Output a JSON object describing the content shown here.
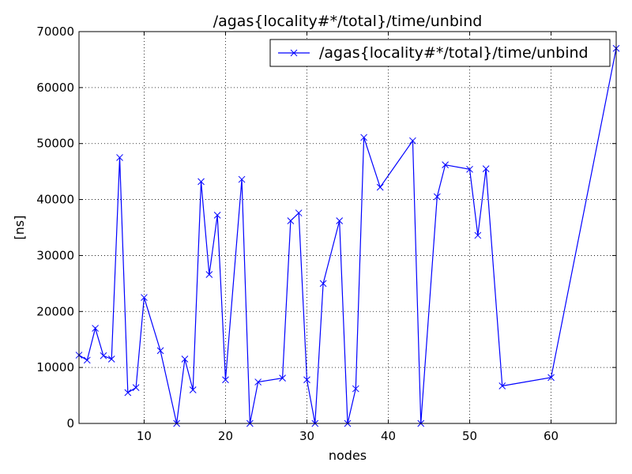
{
  "chart_data": {
    "type": "line",
    "title": "/agas{locality#*/total}/time/unbind",
    "xlabel": "nodes",
    "ylabel": "[ns]",
    "xlim": [
      2,
      68
    ],
    "ylim": [
      0,
      70000
    ],
    "xticks": [
      "10",
      "20",
      "30",
      "40",
      "50",
      "60"
    ],
    "yticks": [
      "0",
      "10000",
      "20000",
      "30000",
      "40000",
      "50000",
      "60000",
      "70000"
    ],
    "grid": true,
    "legend_position": "top-right",
    "series": [
      {
        "name": "/agas{locality#*/total}/time/unbind",
        "color": "#0000ff",
        "marker": "x",
        "x": [
          2,
          3,
          4,
          5,
          6,
          7,
          8,
          9,
          10,
          12,
          14,
          15,
          16,
          17,
          18,
          19,
          20,
          22,
          23,
          24,
          27,
          28,
          29,
          30,
          31,
          32,
          34,
          35,
          36,
          37,
          39,
          43,
          44,
          46,
          47,
          50,
          51,
          52,
          54,
          60,
          68
        ],
        "y": [
          12200,
          11300,
          17000,
          12100,
          11500,
          47500,
          5500,
          6400,
          22500,
          13000,
          0,
          11500,
          6000,
          43200,
          26600,
          37200,
          7800,
          43600,
          0,
          7400,
          8100,
          36200,
          37600,
          7800,
          0,
          25000,
          36200,
          0,
          6200,
          51100,
          42200,
          50500,
          0,
          40500,
          46200,
          45400,
          33600,
          45500,
          6700,
          8200,
          67000
        ]
      }
    ]
  }
}
